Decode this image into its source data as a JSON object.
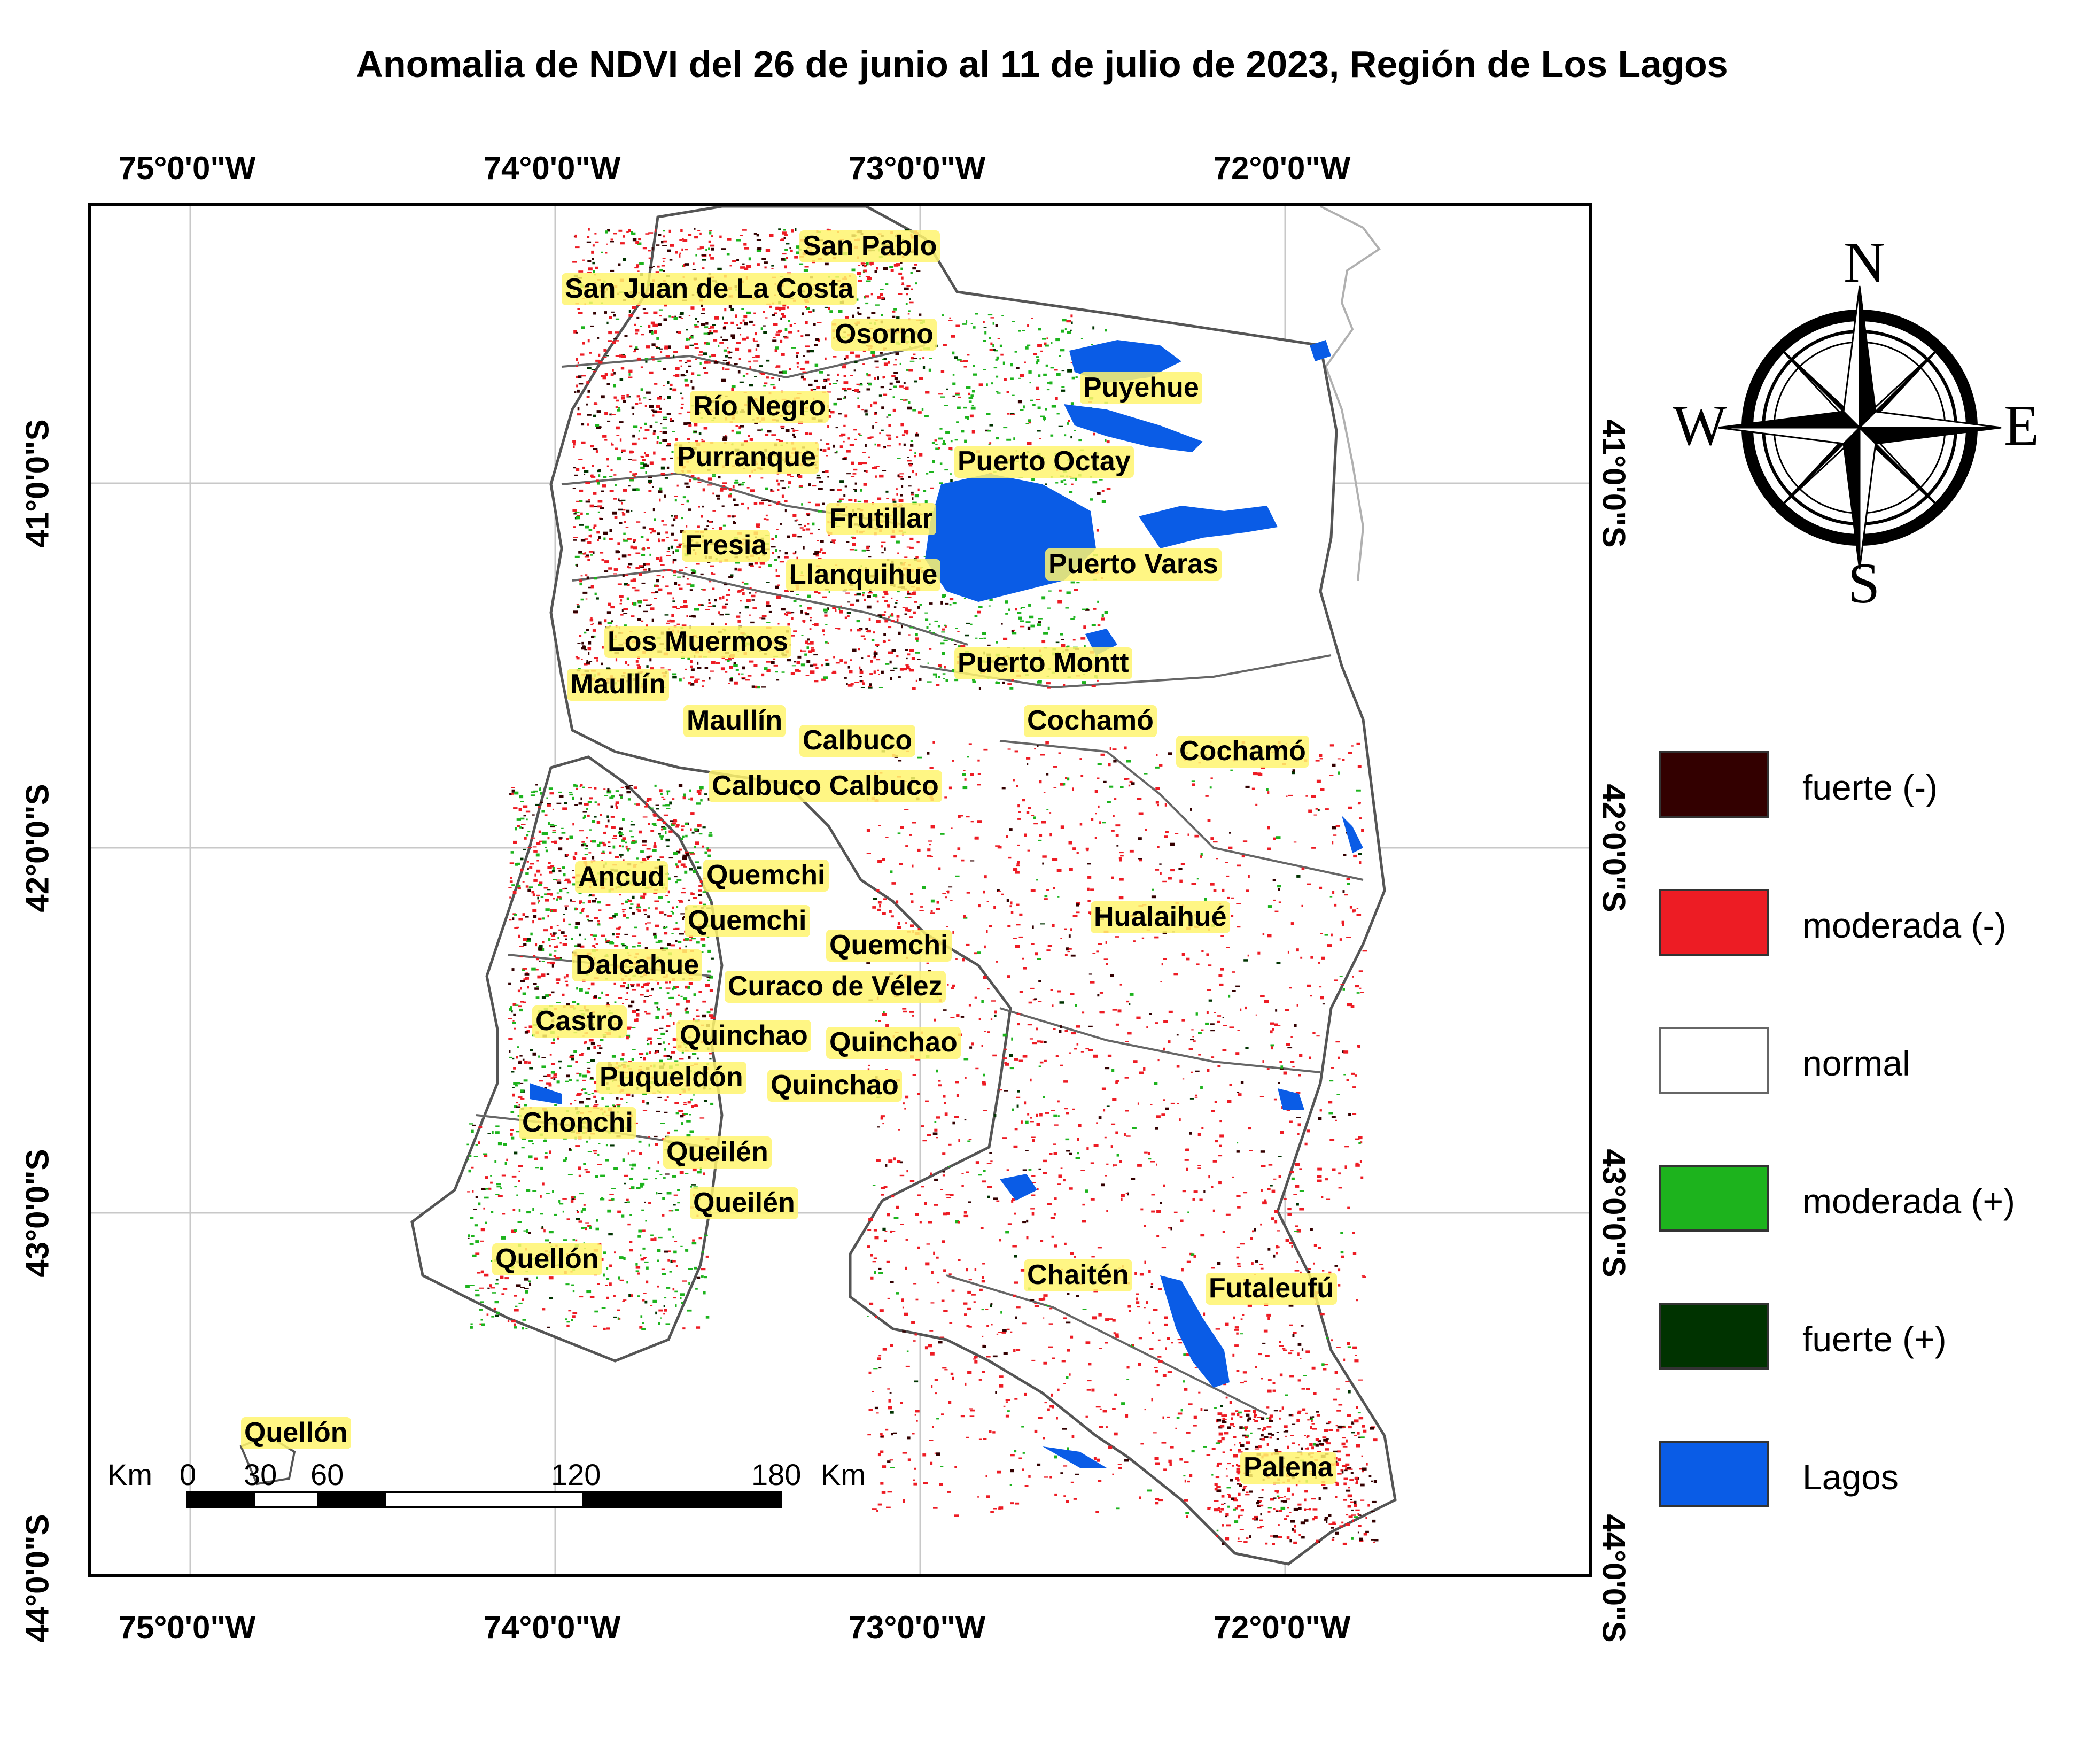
{
  "title": "Anomalia de NDVI del 26 de junio al 11 de julio de 2023, Región de Los Lagos",
  "axes": {
    "top_ticks": [
      "75°0'0\"W",
      "74°0'0\"W",
      "73°0'0\"W",
      "72°0'0\"W"
    ],
    "bottom_ticks": [
      "75°0'0\"W",
      "74°0'0\"W",
      "73°0'0\"W",
      "72°0'0\"W"
    ],
    "left_ticks": [
      "41°0'0\"S",
      "42°0'0\"S",
      "43°0'0\"S",
      "44°0'0\"S"
    ],
    "right_ticks": [
      "41°0'0\"S",
      "42°0'0\"S",
      "43°0'0\"S",
      "44°0'0\"S"
    ]
  },
  "places": [
    "San Pablo",
    "San Juan de La Costa",
    "Osorno",
    "Puyehue",
    "Río Negro",
    "Purranque",
    "Puerto Octay",
    "Frutillar",
    "Fresia",
    "Llanquihue",
    "Puerto Varas",
    "Los Muermos",
    "Puerto Montt",
    "Maullín",
    "Maullín",
    "Cochamó",
    "Calbuco",
    "Cochamó",
    "Calbuco Calbuco",
    "Ancud",
    "Quemchi",
    "Hualaihué",
    "Quemchi",
    "Quemchi",
    "Dalcahue",
    "Curaco de Vélez",
    "Castro",
    "Quinchao",
    "Quinchao",
    "Puqueldón",
    "Quinchao",
    "Chonchi",
    "Queilén",
    "Queilén",
    "Quellón",
    "Chaitén",
    "Futaleufú",
    "Quellón",
    "Palena"
  ],
  "scale_bar": {
    "unit_left": "Km",
    "ticks": [
      "0",
      "30",
      "60",
      "120",
      "180"
    ],
    "unit_right": "Km"
  },
  "compass": {
    "n": "N",
    "s": "S",
    "e": "E",
    "w": "W"
  },
  "legend": [
    {
      "label": "fuerte (-)",
      "color": "#330000"
    },
    {
      "label": "moderada (-)",
      "color": "#ed1c24"
    },
    {
      "label": "normal",
      "color": "#ffffff"
    },
    {
      "label": "moderada (+)",
      "color": "#1db31d"
    },
    {
      "label": "fuerte (+)",
      "color": "#003300"
    },
    {
      "label": "Lagos",
      "color": "#0a5ce6"
    }
  ]
}
